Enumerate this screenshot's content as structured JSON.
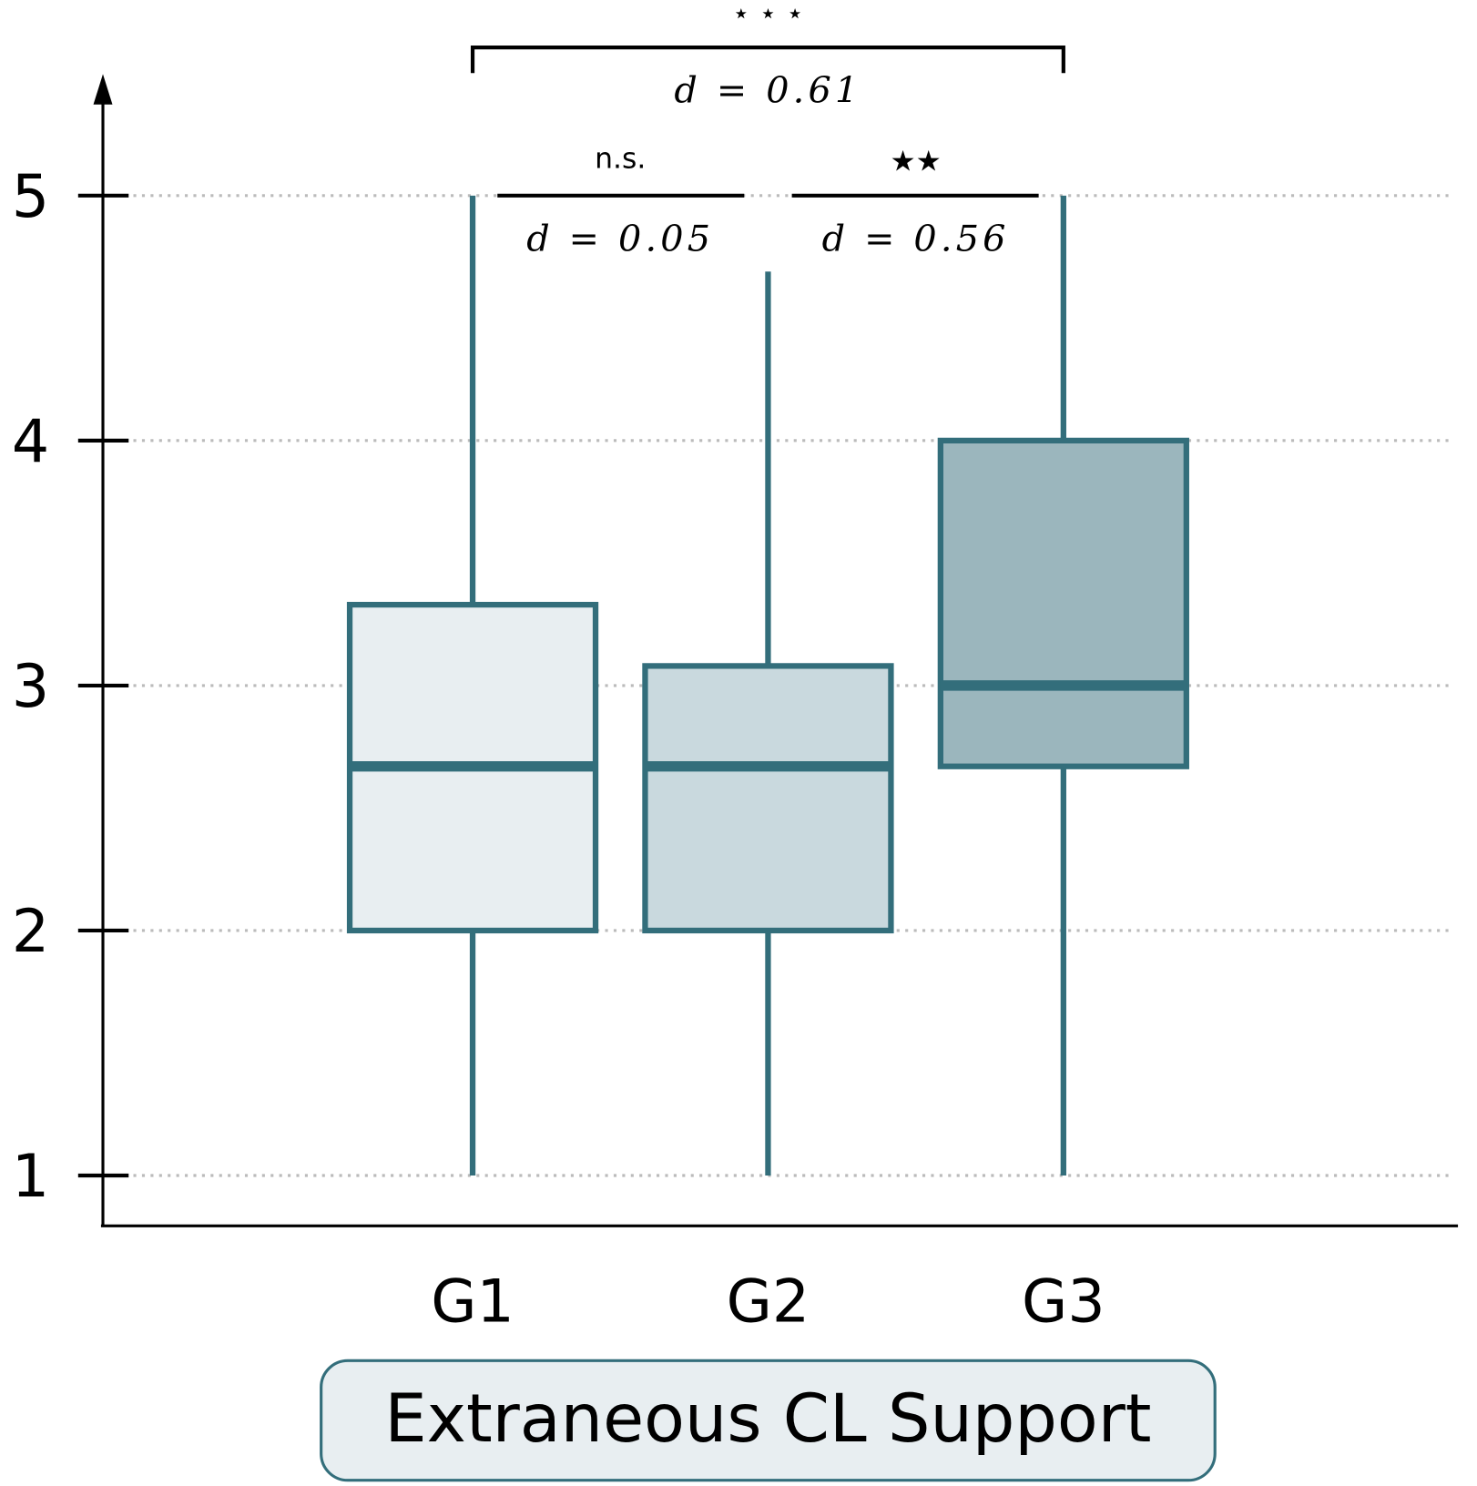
{
  "chart_data": {
    "type": "box",
    "title": "Extraneous CL Support",
    "xlabel": "",
    "ylabel": "",
    "ylim": [
      1,
      5
    ],
    "yticks": [
      "1",
      "2",
      "3",
      "4",
      "5"
    ],
    "grid": true,
    "categories": [
      "G1",
      "G2",
      "G3"
    ],
    "boxes": [
      {
        "name": "G1",
        "whisker_low": 1,
        "q1": 2,
        "median": 2.67,
        "q3": 3.33,
        "whisker_high": 5,
        "fill": "#e8eef1"
      },
      {
        "name": "G2",
        "whisker_low": 1,
        "q1": 2,
        "median": 2.67,
        "q3": 3.08,
        "whisker_high": 4.69,
        "fill": "#c9d9de"
      },
      {
        "name": "G3",
        "whisker_low": 1,
        "q1": 2.67,
        "median": 3,
        "q3": 4,
        "whisker_high": 5,
        "fill": "#9bb6bd"
      }
    ],
    "comparisons": [
      {
        "pair": [
          "G1",
          "G2"
        ],
        "significance": "n.s.",
        "effect": "d = 0.05"
      },
      {
        "pair": [
          "G2",
          "G3"
        ],
        "significance": "★★",
        "effect": "d = 0.56"
      },
      {
        "pair": [
          "G1",
          "G3"
        ],
        "significance": "⋆ ⋆ ⋆",
        "effect": "d = 0.61"
      }
    ],
    "colors": {
      "stroke": "#336e7b",
      "grid": "#bbbbbb",
      "title_box": "#e8eef1"
    }
  }
}
